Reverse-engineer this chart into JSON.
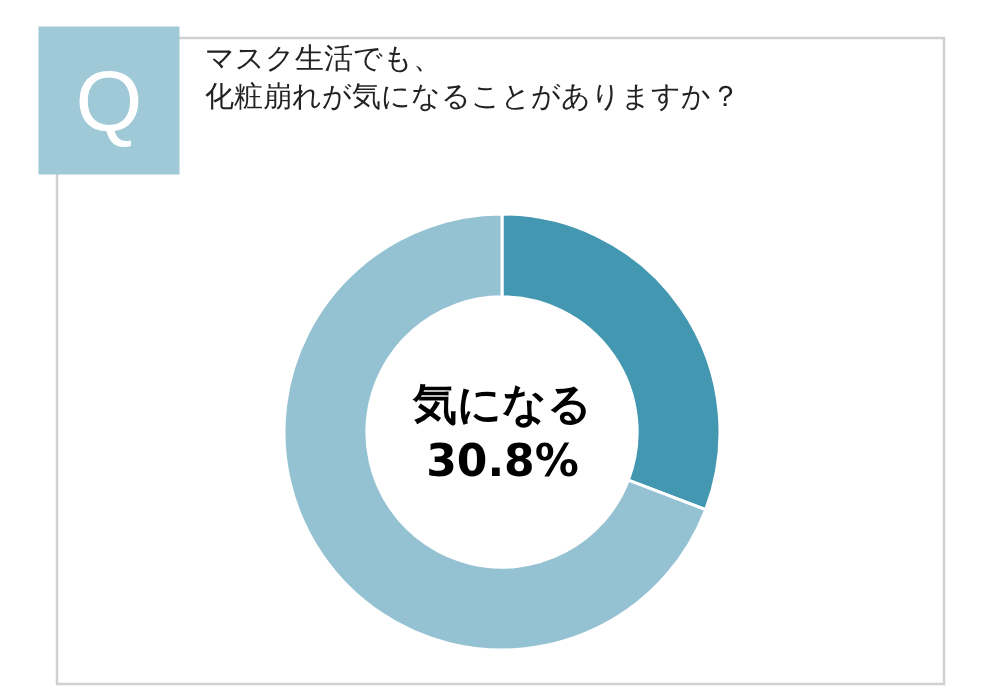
{
  "chart_data": {
    "type": "donut",
    "title": "マスク生活でも、",
    "subtitle": "化粧崩れが気になることがありますか？",
    "annotations": [
      "Q"
    ],
    "categories": [
      "気になる",
      null
    ],
    "values": [
      30.8,
      69.2
    ],
    "colors": [
      "#4397b0",
      "#94c2d3"
    ],
    "value_labels": [
      "30.8%",
      null
    ],
    "legend": false
  }
}
